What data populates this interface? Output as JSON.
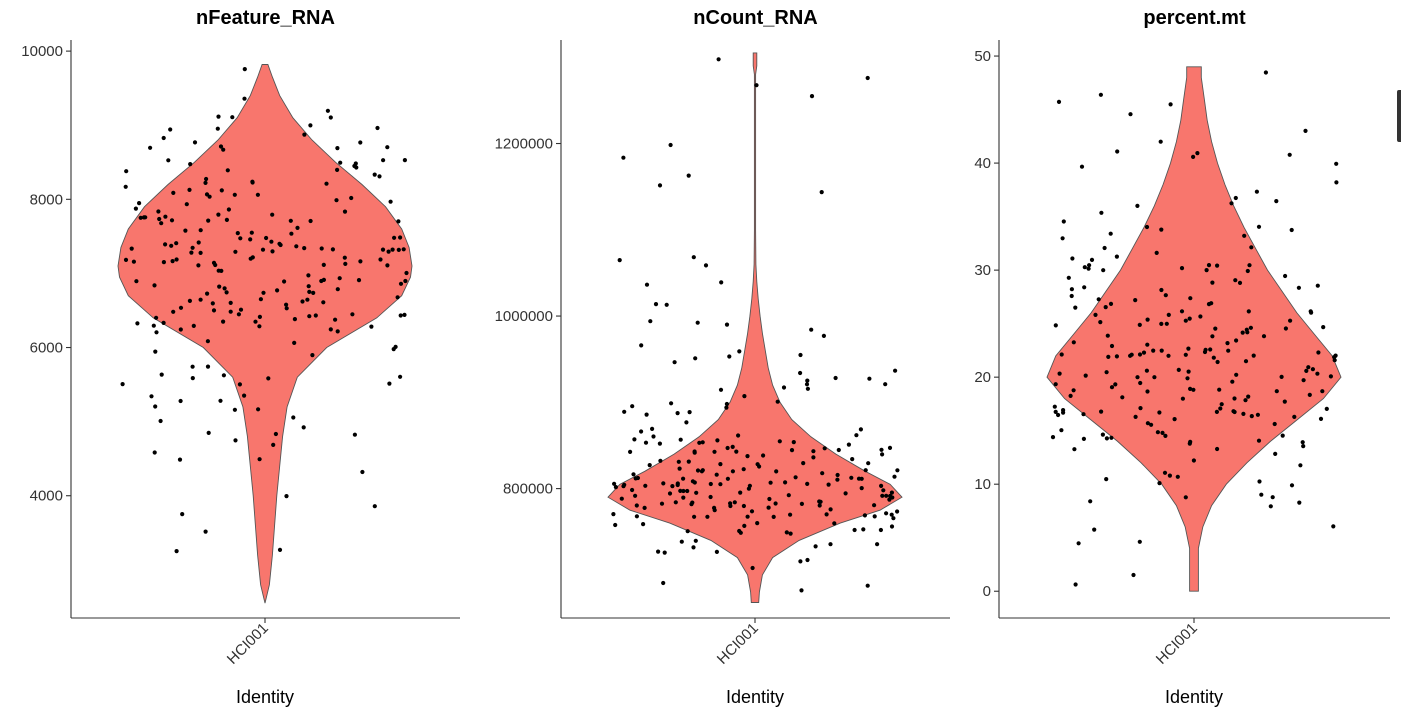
{
  "chart_data": [
    {
      "type": "violin",
      "title": "nFeature_RNA",
      "xlabel": "Identity",
      "ylabel": "",
      "categories": [
        "HCI001"
      ],
      "ylim": [
        2350,
        10150
      ],
      "yticks": [
        4000,
        6000,
        8000,
        10000
      ],
      "ytick_labels": [
        "4000",
        "6000",
        "8000",
        "10000"
      ],
      "violin_range": [
        2550,
        9820
      ],
      "density": [
        [
          2550,
          0.0
        ],
        [
          2800,
          0.03
        ],
        [
          3200,
          0.05
        ],
        [
          3600,
          0.065
        ],
        [
          4000,
          0.08
        ],
        [
          4400,
          0.1
        ],
        [
          4800,
          0.12
        ],
        [
          5200,
          0.15
        ],
        [
          5600,
          0.22
        ],
        [
          6000,
          0.42
        ],
        [
          6400,
          0.76
        ],
        [
          6700,
          0.93
        ],
        [
          6950,
          0.99
        ],
        [
          7100,
          1.0
        ],
        [
          7350,
          0.98
        ],
        [
          7600,
          0.93
        ],
        [
          7900,
          0.82
        ],
        [
          8200,
          0.66
        ],
        [
          8500,
          0.48
        ],
        [
          8800,
          0.32
        ],
        [
          9100,
          0.19
        ],
        [
          9400,
          0.1
        ],
        [
          9650,
          0.05
        ],
        [
          9820,
          0.02
        ]
      ],
      "n_points": 220,
      "points_summary": "jittered cell values, concentrated 6000-8000, tails to ~2550 and ~9800",
      "grid": false,
      "legend": "none"
    },
    {
      "type": "violin",
      "title": "nCount_RNA",
      "xlabel": "Identity",
      "ylabel": "",
      "categories": [
        "HCI001"
      ],
      "ylim": [
        650000,
        1320000
      ],
      "yticks": [
        800000,
        1000000,
        1200000
      ],
      "ytick_labels": [
        "800000",
        "1000000",
        "1200000"
      ],
      "violin_range": [
        668000,
        1305000
      ],
      "density": [
        [
          668000,
          0.025
        ],
        [
          680000,
          0.03
        ],
        [
          700000,
          0.05
        ],
        [
          720000,
          0.12
        ],
        [
          740000,
          0.3
        ],
        [
          760000,
          0.58
        ],
        [
          775000,
          0.85
        ],
        [
          790000,
          1.0
        ],
        [
          805000,
          0.92
        ],
        [
          820000,
          0.75
        ],
        [
          840000,
          0.55
        ],
        [
          860000,
          0.38
        ],
        [
          880000,
          0.25
        ],
        [
          900000,
          0.17
        ],
        [
          920000,
          0.12
        ],
        [
          940000,
          0.09
        ],
        [
          960000,
          0.07
        ],
        [
          980000,
          0.05
        ],
        [
          1000000,
          0.035
        ],
        [
          1020000,
          0.022
        ],
        [
          1040000,
          0.012
        ],
        [
          1060000,
          0.006
        ],
        [
          1100000,
          0.004
        ],
        [
          1280000,
          0.004
        ],
        [
          1290000,
          0.012
        ],
        [
          1305000,
          0.012
        ]
      ],
      "n_points": 220,
      "points_summary": "jittered cell values, concentrated 740000-860000, outlier near 1300000",
      "grid": false,
      "legend": "none"
    },
    {
      "type": "violin",
      "title": "percent.mt",
      "xlabel": "Identity",
      "ylabel": "",
      "categories": [
        "HCI001"
      ],
      "ylim": [
        -2.5,
        51.5
      ],
      "yticks": [
        0,
        10,
        20,
        30,
        40,
        50
      ],
      "ytick_labels": [
        "0",
        "10",
        "20",
        "30",
        "40",
        "50"
      ],
      "violin_range": [
        0,
        49
      ],
      "density": [
        [
          0,
          0.03
        ],
        [
          4,
          0.03
        ],
        [
          6,
          0.06
        ],
        [
          8,
          0.12
        ],
        [
          10,
          0.22
        ],
        [
          12,
          0.36
        ],
        [
          14,
          0.52
        ],
        [
          16,
          0.7
        ],
        [
          18,
          0.88
        ],
        [
          20,
          1.0
        ],
        [
          22,
          0.94
        ],
        [
          24,
          0.82
        ],
        [
          26,
          0.7
        ],
        [
          28,
          0.6
        ],
        [
          30,
          0.5
        ],
        [
          32,
          0.42
        ],
        [
          34,
          0.34
        ],
        [
          36,
          0.27
        ],
        [
          38,
          0.21
        ],
        [
          40,
          0.16
        ],
        [
          42,
          0.12
        ],
        [
          44,
          0.09
        ],
        [
          46,
          0.07
        ],
        [
          48,
          0.05
        ],
        [
          49,
          0.05
        ]
      ],
      "n_points": 220,
      "points_summary": "jittered cell values, concentrated 15-30, tails to 0 and ~49",
      "grid": false,
      "legend": "none"
    }
  ]
}
